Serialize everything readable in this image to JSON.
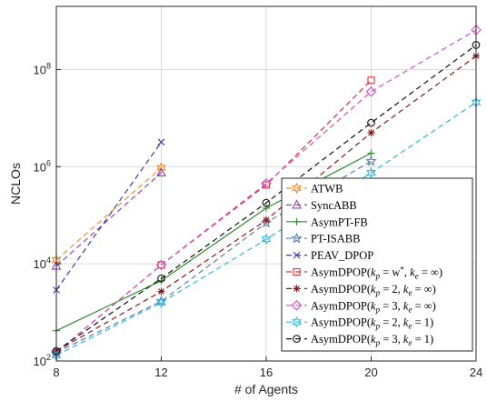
{
  "chart_data": {
    "type": "line",
    "xlabel": "# of Agents",
    "ylabel": "NCLOs",
    "xlim": [
      8,
      24
    ],
    "ylim_log10": [
      2,
      9.3
    ],
    "y_scale": "log",
    "grid": true,
    "legend_position": "bottom-right",
    "x_ticks": [
      "8",
      "12",
      "16",
      "20",
      "24"
    ],
    "y_ticks": [
      {
        "value": 100,
        "base": "10",
        "exp": "2"
      },
      {
        "value": 10000,
        "base": "10",
        "exp": "4"
      },
      {
        "value": 1000000,
        "base": "10",
        "exp": "6"
      },
      {
        "value": 100000000,
        "base": "10",
        "exp": "8"
      }
    ],
    "series": [
      {
        "name": "ATWB",
        "color": "#f28e2b",
        "marker": "star6",
        "dash": "6,4",
        "points": [
          [
            8,
            12000
          ],
          [
            12,
            950000
          ]
        ]
      },
      {
        "name": "SyncABB",
        "color": "#8e44ad",
        "marker": "triangle",
        "dash": "6,4",
        "points": [
          [
            8,
            9000
          ],
          [
            12,
            750000
          ]
        ]
      },
      {
        "name": "AsymPT-FB",
        "color": "#2e8b2e",
        "marker": "plus",
        "dash": "",
        "points": [
          [
            8,
            420
          ],
          [
            12,
            4500
          ],
          [
            16,
            140000
          ],
          [
            20,
            1900000
          ]
        ]
      },
      {
        "name": "PT-ISABB",
        "color": "#5a7fb0",
        "marker": "star5",
        "dash": "6,4",
        "points": [
          [
            8,
            150
          ],
          [
            12,
            1700
          ],
          [
            16,
            70000
          ],
          [
            20,
            1300000
          ]
        ]
      },
      {
        "name": "PEAV_DPOP",
        "color": "#3a3aa8",
        "marker": "x",
        "dash": "6,4",
        "points": [
          [
            8,
            2900
          ],
          [
            12,
            3200000
          ]
        ]
      },
      {
        "name": "AsymDPOP(k_p = w*, k_e = ∞)",
        "color": "#e03030",
        "marker": "square",
        "dash": "6,4",
        "points": [
          [
            8,
            150
          ],
          [
            12,
            9500
          ],
          [
            16,
            420000
          ],
          [
            20,
            60000000
          ]
        ]
      },
      {
        "name": "AsymDPOP(k_p = 2, k_e = ∞)",
        "color": "#8b1a1a",
        "marker": "asterisk",
        "dash": "6,4",
        "points": [
          [
            8,
            160
          ],
          [
            12,
            2700
          ],
          [
            16,
            80000
          ],
          [
            20,
            5000000
          ],
          [
            24,
            190000000
          ]
        ]
      },
      {
        "name": "AsymDPOP(k_p = 3, k_e = ∞)",
        "color": "#d050c8",
        "marker": "diamond",
        "dash": "6,4",
        "points": [
          [
            8,
            150
          ],
          [
            12,
            9500
          ],
          [
            16,
            450000
          ],
          [
            20,
            35000000
          ],
          [
            24,
            650000000
          ]
        ]
      },
      {
        "name": "AsymDPOP(k_p = 2, k_e = 1)",
        "color": "#30b8e0",
        "marker": "star6",
        "dash": "6,4",
        "points": [
          [
            8,
            130
          ],
          [
            12,
            1600
          ],
          [
            16,
            32000
          ],
          [
            20,
            750000
          ],
          [
            24,
            21000000
          ]
        ]
      },
      {
        "name": "AsymDPOP(k_p = 3, k_e = 1)",
        "color": "#111111",
        "marker": "circle",
        "dash": "6,4",
        "points": [
          [
            8,
            160
          ],
          [
            12,
            5000
          ],
          [
            16,
            180000
          ],
          [
            20,
            8000000
          ],
          [
            24,
            320000000
          ]
        ]
      }
    ],
    "legend_labels": [
      {
        "plain": "ATWB"
      },
      {
        "plain": "SyncABB"
      },
      {
        "plain": "AsymPT-FB"
      },
      {
        "plain": "PT-ISABB"
      },
      {
        "plain": "PEAV_DPOP"
      },
      {
        "head": "AsymDPOP(",
        "k1": "k",
        "s1": "p",
        "v1": " = w",
        "sup1": "*",
        "mid": ", ",
        "k2": "k",
        "s2": "e",
        "v2": " = ∞",
        "tail": ")"
      },
      {
        "head": "AsymDPOP(",
        "k1": "k",
        "s1": "p",
        "v1": " = 2",
        "sup1": "",
        "mid": ", ",
        "k2": "k",
        "s2": "e",
        "v2": " = ∞",
        "tail": ")"
      },
      {
        "head": "AsymDPOP(",
        "k1": "k",
        "s1": "p",
        "v1": " = 3",
        "sup1": "",
        "mid": ", ",
        "k2": "k",
        "s2": "e",
        "v2": " = ∞",
        "tail": ")"
      },
      {
        "head": "AsymDPOP(",
        "k1": "k",
        "s1": "p",
        "v1": " = 2",
        "sup1": "",
        "mid": ", ",
        "k2": "k",
        "s2": "e",
        "v2": " = 1",
        "tail": ")"
      },
      {
        "head": "AsymDPOP(",
        "k1": "k",
        "s1": "p",
        "v1": " = 3",
        "sup1": "",
        "mid": ", ",
        "k2": "k",
        "s2": "e",
        "v2": " = 1",
        "tail": ")"
      }
    ]
  }
}
